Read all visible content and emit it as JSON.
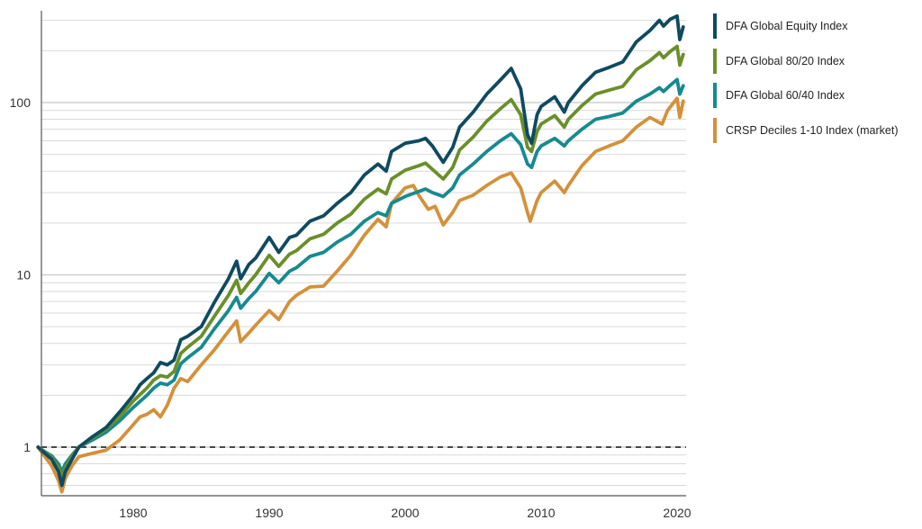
{
  "chart_data": {
    "type": "line",
    "title": "",
    "xlabel": "",
    "ylabel": "",
    "y_scale": "log",
    "ylim": [
      0.5,
      330
    ],
    "xlim": [
      1973.0,
      2020.5
    ],
    "y_tick_labels": [
      "1",
      "10",
      "100"
    ],
    "x_tick_labels": [
      "1980",
      "1990",
      "2000",
      "2010",
      "2020"
    ],
    "reference_line": {
      "y": 1,
      "style": "dashed",
      "color": "#111111"
    },
    "grid": "horizontal",
    "legend_position": "right",
    "series": [
      {
        "name": "DFA Global Equity Index",
        "color": "#0f4a61",
        "points": [
          [
            1973.0,
            1.0
          ],
          [
            1973.5,
            0.92
          ],
          [
            1974.0,
            0.85
          ],
          [
            1974.5,
            0.72
          ],
          [
            1974.75,
            0.6
          ],
          [
            1975.0,
            0.72
          ],
          [
            1975.5,
            0.85
          ],
          [
            1976.0,
            1.0
          ],
          [
            1977.0,
            1.15
          ],
          [
            1978.0,
            1.3
          ],
          [
            1979.0,
            1.6
          ],
          [
            1980.0,
            2.0
          ],
          [
            1980.5,
            2.3
          ],
          [
            1981.0,
            2.5
          ],
          [
            1981.5,
            2.7
          ],
          [
            1982.0,
            3.1
          ],
          [
            1982.5,
            3.0
          ],
          [
            1983.0,
            3.2
          ],
          [
            1983.5,
            4.2
          ],
          [
            1984.0,
            4.4
          ],
          [
            1985.0,
            5.0
          ],
          [
            1986.0,
            7.0
          ],
          [
            1987.0,
            9.5
          ],
          [
            1987.6,
            12.0
          ],
          [
            1987.9,
            9.5
          ],
          [
            1988.5,
            11.5
          ],
          [
            1989.0,
            12.5
          ],
          [
            1990.0,
            16.5
          ],
          [
            1990.7,
            13.5
          ],
          [
            1991.5,
            16.5
          ],
          [
            1992.0,
            17.0
          ],
          [
            1993.0,
            20.5
          ],
          [
            1994.0,
            22.0
          ],
          [
            1995.0,
            26.0
          ],
          [
            1996.0,
            30.0
          ],
          [
            1997.0,
            38.0
          ],
          [
            1998.0,
            44.0
          ],
          [
            1998.6,
            40.0
          ],
          [
            1999.0,
            52.0
          ],
          [
            2000.0,
            58.0
          ],
          [
            2001.0,
            60.0
          ],
          [
            2001.5,
            62.0
          ],
          [
            2002.0,
            56.0
          ],
          [
            2002.8,
            45.0
          ],
          [
            2003.5,
            55.0
          ],
          [
            2004.0,
            72.0
          ],
          [
            2005.0,
            88.0
          ],
          [
            2006.0,
            112.0
          ],
          [
            2007.0,
            135.0
          ],
          [
            2007.8,
            158.0
          ],
          [
            2008.5,
            120.0
          ],
          [
            2009.0,
            65.0
          ],
          [
            2009.3,
            58.0
          ],
          [
            2009.7,
            85.0
          ],
          [
            2010.0,
            95.0
          ],
          [
            2011.0,
            108.0
          ],
          [
            2011.7,
            88.0
          ],
          [
            2012.0,
            100.0
          ],
          [
            2013.0,
            125.0
          ],
          [
            2014.0,
            150.0
          ],
          [
            2015.0,
            160.0
          ],
          [
            2016.0,
            172.0
          ],
          [
            2017.0,
            225.0
          ],
          [
            2018.0,
            262.0
          ],
          [
            2018.7,
            300.0
          ],
          [
            2019.0,
            278.0
          ],
          [
            2019.5,
            305.0
          ],
          [
            2020.0,
            318.0
          ],
          [
            2020.2,
            232.0
          ],
          [
            2020.45,
            275.0
          ]
        ]
      },
      {
        "name": "DFA Global 80/20 Index",
        "color": "#6a8f2a",
        "points": [
          [
            1973.0,
            1.0
          ],
          [
            1973.5,
            0.93
          ],
          [
            1974.0,
            0.87
          ],
          [
            1974.5,
            0.76
          ],
          [
            1974.75,
            0.66
          ],
          [
            1975.0,
            0.76
          ],
          [
            1975.5,
            0.88
          ],
          [
            1976.0,
            1.0
          ],
          [
            1977.0,
            1.13
          ],
          [
            1978.0,
            1.27
          ],
          [
            1979.0,
            1.5
          ],
          [
            1980.0,
            1.85
          ],
          [
            1981.0,
            2.2
          ],
          [
            1981.5,
            2.45
          ],
          [
            1982.0,
            2.6
          ],
          [
            1982.5,
            2.55
          ],
          [
            1983.0,
            2.75
          ],
          [
            1983.5,
            3.5
          ],
          [
            1984.0,
            3.8
          ],
          [
            1985.0,
            4.4
          ],
          [
            1986.0,
            5.8
          ],
          [
            1987.0,
            7.6
          ],
          [
            1987.6,
            9.3
          ],
          [
            1987.9,
            7.8
          ],
          [
            1988.5,
            9.0
          ],
          [
            1989.0,
            10.0
          ],
          [
            1990.0,
            13.0
          ],
          [
            1990.7,
            11.2
          ],
          [
            1991.5,
            13.2
          ],
          [
            1992.0,
            13.8
          ],
          [
            1993.0,
            16.2
          ],
          [
            1994.0,
            17.2
          ],
          [
            1995.0,
            20.0
          ],
          [
            1996.0,
            22.5
          ],
          [
            1997.0,
            27.5
          ],
          [
            1998.0,
            31.5
          ],
          [
            1998.6,
            29.5
          ],
          [
            1999.0,
            36.0
          ],
          [
            2000.0,
            40.5
          ],
          [
            2001.0,
            43.0
          ],
          [
            2001.5,
            44.5
          ],
          [
            2002.0,
            41.0
          ],
          [
            2002.8,
            36.0
          ],
          [
            2003.5,
            42.0
          ],
          [
            2004.0,
            53.0
          ],
          [
            2005.0,
            63.0
          ],
          [
            2006.0,
            78.0
          ],
          [
            2007.0,
            92.0
          ],
          [
            2007.8,
            104.0
          ],
          [
            2008.5,
            85.0
          ],
          [
            2009.0,
            55.0
          ],
          [
            2009.3,
            52.0
          ],
          [
            2009.7,
            68.0
          ],
          [
            2010.0,
            75.0
          ],
          [
            2011.0,
            84.0
          ],
          [
            2011.7,
            72.0
          ],
          [
            2012.0,
            80.0
          ],
          [
            2013.0,
            96.0
          ],
          [
            2014.0,
            112.0
          ],
          [
            2015.0,
            118.0
          ],
          [
            2016.0,
            124.0
          ],
          [
            2017.0,
            155.0
          ],
          [
            2018.0,
            175.0
          ],
          [
            2018.7,
            195.0
          ],
          [
            2019.0,
            182.0
          ],
          [
            2019.5,
            198.0
          ],
          [
            2020.0,
            212.0
          ],
          [
            2020.2,
            165.0
          ],
          [
            2020.45,
            190.0
          ]
        ]
      },
      {
        "name": "DFA Global 60/40 Index",
        "color": "#178a8f",
        "points": [
          [
            1973.0,
            1.0
          ],
          [
            1973.5,
            0.94
          ],
          [
            1974.0,
            0.89
          ],
          [
            1974.5,
            0.8
          ],
          [
            1974.75,
            0.72
          ],
          [
            1975.0,
            0.8
          ],
          [
            1975.5,
            0.9
          ],
          [
            1976.0,
            1.0
          ],
          [
            1977.0,
            1.1
          ],
          [
            1978.0,
            1.22
          ],
          [
            1979.0,
            1.42
          ],
          [
            1980.0,
            1.7
          ],
          [
            1981.0,
            2.0
          ],
          [
            1981.5,
            2.2
          ],
          [
            1982.0,
            2.35
          ],
          [
            1982.5,
            2.3
          ],
          [
            1983.0,
            2.45
          ],
          [
            1983.5,
            3.05
          ],
          [
            1984.0,
            3.3
          ],
          [
            1985.0,
            3.8
          ],
          [
            1986.0,
            4.9
          ],
          [
            1987.0,
            6.2
          ],
          [
            1987.6,
            7.4
          ],
          [
            1987.9,
            6.4
          ],
          [
            1988.5,
            7.3
          ],
          [
            1989.0,
            8.0
          ],
          [
            1990.0,
            10.2
          ],
          [
            1990.7,
            9.0
          ],
          [
            1991.5,
            10.5
          ],
          [
            1992.0,
            11.0
          ],
          [
            1993.0,
            12.8
          ],
          [
            1994.0,
            13.5
          ],
          [
            1995.0,
            15.5
          ],
          [
            1996.0,
            17.2
          ],
          [
            1997.0,
            20.5
          ],
          [
            1998.0,
            23.0
          ],
          [
            1998.6,
            22.0
          ],
          [
            1999.0,
            26.0
          ],
          [
            2000.0,
            28.5
          ],
          [
            2001.0,
            30.5
          ],
          [
            2001.5,
            31.5
          ],
          [
            2002.0,
            30.0
          ],
          [
            2002.8,
            28.5
          ],
          [
            2003.5,
            32.0
          ],
          [
            2004.0,
            38.0
          ],
          [
            2005.0,
            44.0
          ],
          [
            2006.0,
            52.0
          ],
          [
            2007.0,
            60.0
          ],
          [
            2007.8,
            66.0
          ],
          [
            2008.5,
            57.0
          ],
          [
            2009.0,
            44.0
          ],
          [
            2009.3,
            42.0
          ],
          [
            2009.7,
            52.0
          ],
          [
            2010.0,
            56.0
          ],
          [
            2011.0,
            62.0
          ],
          [
            2011.7,
            56.0
          ],
          [
            2012.0,
            60.0
          ],
          [
            2013.0,
            70.0
          ],
          [
            2014.0,
            80.0
          ],
          [
            2015.0,
            83.0
          ],
          [
            2016.0,
            87.0
          ],
          [
            2017.0,
            102.0
          ],
          [
            2018.0,
            112.0
          ],
          [
            2018.7,
            122.0
          ],
          [
            2019.0,
            116.0
          ],
          [
            2019.5,
            126.0
          ],
          [
            2020.0,
            136.0
          ],
          [
            2020.2,
            112.0
          ],
          [
            2020.45,
            125.0
          ]
        ]
      },
      {
        "name": "CRSP Deciles 1-10 Index (market)",
        "color": "#d3913a",
        "points": [
          [
            1973.0,
            1.0
          ],
          [
            1973.5,
            0.88
          ],
          [
            1974.0,
            0.78
          ],
          [
            1974.5,
            0.64
          ],
          [
            1974.75,
            0.55
          ],
          [
            1975.0,
            0.66
          ],
          [
            1975.5,
            0.78
          ],
          [
            1976.0,
            0.88
          ],
          [
            1977.0,
            0.92
          ],
          [
            1978.0,
            0.96
          ],
          [
            1979.0,
            1.1
          ],
          [
            1980.0,
            1.35
          ],
          [
            1980.5,
            1.5
          ],
          [
            1981.0,
            1.55
          ],
          [
            1981.5,
            1.65
          ],
          [
            1982.0,
            1.5
          ],
          [
            1982.5,
            1.75
          ],
          [
            1983.0,
            2.2
          ],
          [
            1983.5,
            2.5
          ],
          [
            1984.0,
            2.4
          ],
          [
            1985.0,
            3.0
          ],
          [
            1986.0,
            3.7
          ],
          [
            1987.0,
            4.7
          ],
          [
            1987.6,
            5.4
          ],
          [
            1987.9,
            4.1
          ],
          [
            1988.5,
            4.6
          ],
          [
            1989.0,
            5.1
          ],
          [
            1990.0,
            6.2
          ],
          [
            1990.7,
            5.5
          ],
          [
            1991.5,
            7.0
          ],
          [
            1992.0,
            7.6
          ],
          [
            1993.0,
            8.5
          ],
          [
            1994.0,
            8.6
          ],
          [
            1995.0,
            10.5
          ],
          [
            1996.0,
            13.0
          ],
          [
            1997.0,
            17.0
          ],
          [
            1998.0,
            21.0
          ],
          [
            1998.6,
            19.0
          ],
          [
            1999.0,
            26.0
          ],
          [
            2000.0,
            32.0
          ],
          [
            2000.6,
            33.0
          ],
          [
            2001.0,
            29.0
          ],
          [
            2001.7,
            24.0
          ],
          [
            2002.2,
            25.0
          ],
          [
            2002.8,
            19.5
          ],
          [
            2003.5,
            23.0
          ],
          [
            2004.0,
            27.0
          ],
          [
            2005.0,
            29.0
          ],
          [
            2006.0,
            33.0
          ],
          [
            2007.0,
            37.0
          ],
          [
            2007.8,
            39.0
          ],
          [
            2008.5,
            32.0
          ],
          [
            2009.0,
            23.0
          ],
          [
            2009.2,
            20.5
          ],
          [
            2009.7,
            27.0
          ],
          [
            2010.0,
            30.0
          ],
          [
            2011.0,
            35.0
          ],
          [
            2011.7,
            30.0
          ],
          [
            2012.0,
            33.0
          ],
          [
            2013.0,
            43.0
          ],
          [
            2014.0,
            52.0
          ],
          [
            2015.0,
            56.0
          ],
          [
            2016.0,
            60.0
          ],
          [
            2017.0,
            72.0
          ],
          [
            2018.0,
            82.0
          ],
          [
            2018.9,
            75.0
          ],
          [
            2019.3,
            90.0
          ],
          [
            2020.0,
            106.0
          ],
          [
            2020.2,
            82.0
          ],
          [
            2020.45,
            102.0
          ]
        ]
      }
    ]
  }
}
